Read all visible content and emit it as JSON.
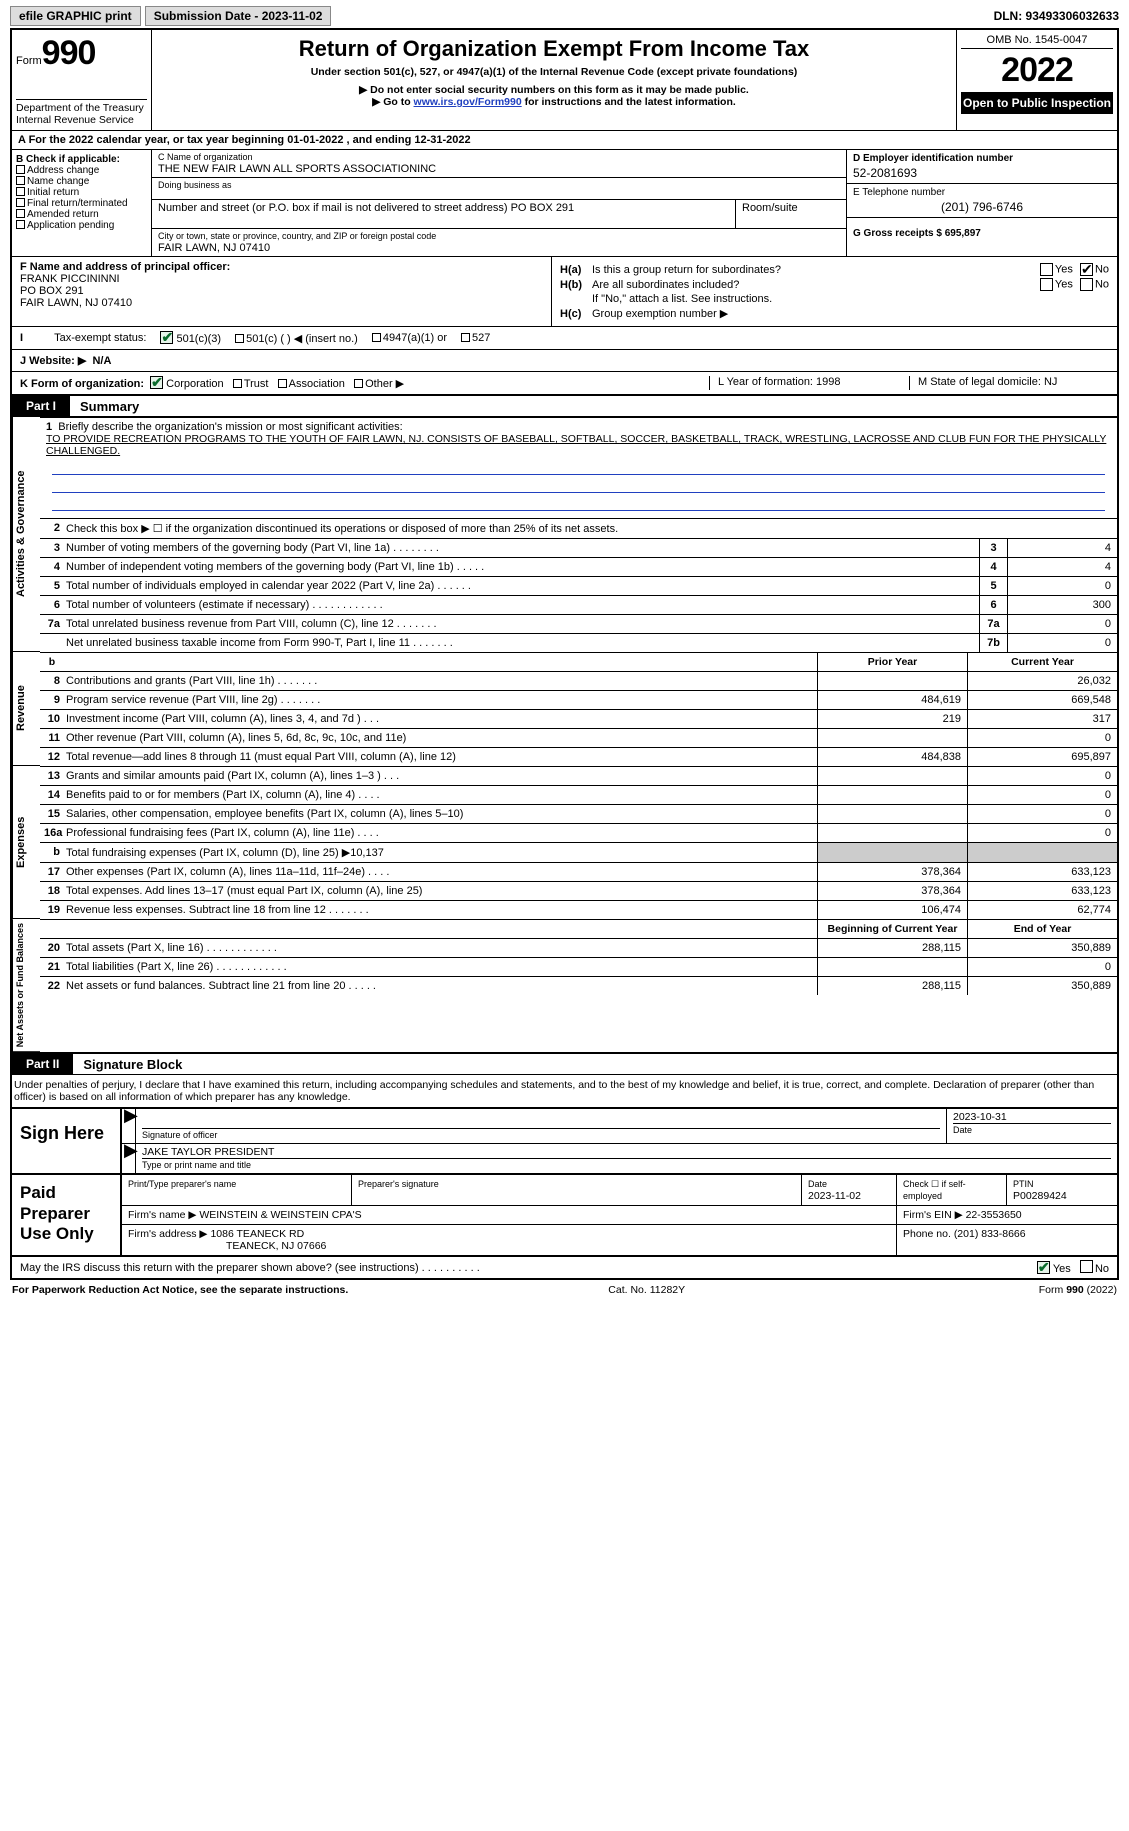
{
  "colors": {
    "link": "#2040c0",
    "check_green": "#0a6b2c",
    "shade": "#cccccc",
    "black": "#000000",
    "white": "#ffffff"
  },
  "topbar": {
    "efile": "efile GRAPHIC print",
    "submission_label": "Submission Date - 2023-11-02",
    "dln_label": "DLN: 93493306032633"
  },
  "header": {
    "form_label": "Form",
    "form_number": "990",
    "dept": "Department of the Treasury\nInternal Revenue Service",
    "title": "Return of Organization Exempt From Income Tax",
    "subtitle": "Under section 501(c), 527, or 4947(a)(1) of the Internal Revenue Code (except private foundations)",
    "note1": "▶ Do not enter social security numbers on this form as it may be made public.",
    "note2_pre": "▶ Go to ",
    "note2_link": "www.irs.gov/Form990",
    "note2_post": " for instructions and the latest information.",
    "omb": "OMB No. 1545-0047",
    "year": "2022",
    "public": "Open to Public Inspection"
  },
  "rowA": "A For the 2022 calendar year, or tax year beginning 01-01-2022   , and ending 12-31-2022",
  "colB": {
    "label": "B Check if applicable:",
    "items": [
      "Address change",
      "Name change",
      "Initial return",
      "Final return/terminated",
      "Amended return",
      "Application pending"
    ]
  },
  "colC": {
    "name_label": "C Name of organization",
    "name": "THE NEW FAIR LAWN ALL SPORTS ASSOCIATIONINC",
    "dba_label": "Doing business as",
    "dba": "",
    "street_label": "Number and street (or P.O. box if mail is not delivered to street address)",
    "room_label": "Room/suite",
    "street": "PO BOX 291",
    "city_label": "City or town, state or province, country, and ZIP or foreign postal code",
    "city": "FAIR LAWN, NJ  07410"
  },
  "colDE": {
    "d_label": "D Employer identification number",
    "d_val": "52-2081693",
    "e_label": "E Telephone number",
    "e_val": "(201) 796-6746",
    "g_label": "G Gross receipts $ 695,897"
  },
  "blockF": {
    "label": "F Name and address of principal officer:",
    "name": "FRANK PICCININNI",
    "street": "PO BOX 291",
    "city": "FAIR LAWN, NJ  07410"
  },
  "blockH": {
    "ha_label": "Is this a group return for subordinates?",
    "ha": "H(a)",
    "hb": "H(b)",
    "hb_label": "Are all subordinates included?",
    "hb_note": "If \"No,\" attach a list. See instructions.",
    "hc": "H(c)",
    "hc_label": "Group exemption number ▶",
    "yes": "Yes",
    "no": "No",
    "ha_no_checked": true
  },
  "rowI": {
    "label": "Tax-exempt status:",
    "o1": "501(c)(3)",
    "o2": "501(c) (   ) ◀ (insert no.)",
    "o3": "4947(a)(1) or",
    "o4": "527",
    "checked": "o1"
  },
  "rowJ": {
    "label": "J   Website: ▶",
    "val": "N/A"
  },
  "rowK": {
    "label": "K Form of organization:",
    "opts": [
      "Corporation",
      "Trust",
      "Association",
      "Other ▶"
    ],
    "checked": 0
  },
  "rowL": "L Year of formation: 1998",
  "rowM": "M State of legal domicile: NJ",
  "part1": {
    "tag": "Part I",
    "title": "Summary"
  },
  "mission": {
    "num": "1",
    "label": "Briefly describe the organization's mission or most significant activities:",
    "text": "TO PROVIDE RECREATION PROGRAMS TO THE YOUTH OF FAIR LAWN, NJ. CONSISTS OF BASEBALL, SOFTBALL, SOCCER, BASKETBALL, TRACK, WRESTLING, LACROSSE AND CLUB FUN FOR THE PHYSICALLY CHALLENGED."
  },
  "sectAG": {
    "vlabel": "Activities & Governance",
    "rows": [
      {
        "n": "2",
        "d": "Check this box ▶ ☐ if the organization discontinued its operations or disposed of more than 25% of its net assets.",
        "box": "",
        "v": ""
      },
      {
        "n": "3",
        "d": "Number of voting members of the governing body (Part VI, line 1a)   .    .    .    .    .    .    .    .",
        "box": "3",
        "v": "4"
      },
      {
        "n": "4",
        "d": "Number of independent voting members of the governing body (Part VI, line 1b)   .    .    .    .    .",
        "box": "4",
        "v": "4"
      },
      {
        "n": "5",
        "d": "Total number of individuals employed in calendar year 2022 (Part V, line 2a)   .    .    .    .    .    .",
        "box": "5",
        "v": "0"
      },
      {
        "n": "6",
        "d": "Total number of volunteers (estimate if necessary)   .    .    .    .    .    .    .    .    .    .    .    .",
        "box": "6",
        "v": "300"
      },
      {
        "n": "7a",
        "d": "Total unrelated business revenue from Part VIII, column (C), line 12   .    .    .    .    .    .    .",
        "box": "7a",
        "v": "0"
      },
      {
        "n": "",
        "d": "Net unrelated business taxable income from Form 990-T, Part I, line 11   .    .    .    .    .    .    .",
        "box": "7b",
        "v": "0"
      }
    ]
  },
  "revHdr": {
    "left": "b",
    "prior": "Prior Year",
    "curr": "Current Year"
  },
  "sectRev": {
    "vlabel": "Revenue",
    "rows": [
      {
        "n": "8",
        "d": "Contributions and grants (Part VIII, line 1h)   .    .    .    .    .    .    .",
        "p": "",
        "c": "26,032"
      },
      {
        "n": "9",
        "d": "Program service revenue (Part VIII, line 2g)   .    .    .    .    .    .    .",
        "p": "484,619",
        "c": "669,548"
      },
      {
        "n": "10",
        "d": "Investment income (Part VIII, column (A), lines 3, 4, and 7d )   .    .    .",
        "p": "219",
        "c": "317"
      },
      {
        "n": "11",
        "d": "Other revenue (Part VIII, column (A), lines 5, 6d, 8c, 9c, 10c, and 11e)",
        "p": "",
        "c": "0"
      },
      {
        "n": "12",
        "d": "Total revenue—add lines 8 through 11 (must equal Part VIII, column (A), line 12)",
        "p": "484,838",
        "c": "695,897"
      }
    ]
  },
  "sectExp": {
    "vlabel": "Expenses",
    "rows": [
      {
        "n": "13",
        "d": "Grants and similar amounts paid (Part IX, column (A), lines 1–3 )   .    .    .",
        "p": "",
        "c": "0"
      },
      {
        "n": "14",
        "d": "Benefits paid to or for members (Part IX, column (A), line 4)   .    .    .    .",
        "p": "",
        "c": "0"
      },
      {
        "n": "15",
        "d": "Salaries, other compensation, employee benefits (Part IX, column (A), lines 5–10)",
        "p": "",
        "c": "0"
      },
      {
        "n": "16a",
        "d": "Professional fundraising fees (Part IX, column (A), line 11e)   .    .    .    .",
        "p": "",
        "c": "0"
      },
      {
        "n": "b",
        "d": "Total fundraising expenses (Part IX, column (D), line 25) ▶10,137",
        "p": "__shade__",
        "c": "__shade__"
      },
      {
        "n": "17",
        "d": "Other expenses (Part IX, column (A), lines 11a–11d, 11f–24e)   .    .    .    .",
        "p": "378,364",
        "c": "633,123"
      },
      {
        "n": "18",
        "d": "Total expenses. Add lines 13–17 (must equal Part IX, column (A), line 25)",
        "p": "378,364",
        "c": "633,123"
      },
      {
        "n": "19",
        "d": "Revenue less expenses. Subtract line 18 from line 12   .    .    .    .    .    .    .",
        "p": "106,474",
        "c": "62,774"
      }
    ]
  },
  "naHdr": {
    "prior": "Beginning of Current Year",
    "curr": "End of Year"
  },
  "sectNA": {
    "vlabel": "Net Assets or Fund Balances",
    "rows": [
      {
        "n": "20",
        "d": "Total assets (Part X, line 16)   .    .    .    .    .    .    .    .    .    .    .    .",
        "p": "288,115",
        "c": "350,889"
      },
      {
        "n": "21",
        "d": "Total liabilities (Part X, line 26)   .    .    .    .    .    .    .    .    .    .    .    .",
        "p": "",
        "c": "0"
      },
      {
        "n": "22",
        "d": "Net assets or fund balances. Subtract line 21 from line 20   .    .    .    .    .",
        "p": "288,115",
        "c": "350,889"
      }
    ]
  },
  "part2": {
    "tag": "Part II",
    "title": "Signature Block"
  },
  "penalty": "Under penalties of perjury, I declare that I have examined this return, including accompanying schedules and statements, and to the best of my knowledge and belief, it is true, correct, and complete. Declaration of preparer (other than officer) is based on all information of which preparer has any knowledge.",
  "sign": {
    "label": "Sign Here",
    "sig_label": "Signature of officer",
    "date": "2023-10-31",
    "date_label": "Date",
    "name": "JAKE TAYLOR  PRESIDENT",
    "name_label": "Type or print name and title"
  },
  "paid": {
    "label": "Paid Preparer Use Only",
    "h_name": "Print/Type preparer's name",
    "h_sig": "Preparer's signature",
    "h_date": "Date",
    "date": "2023-11-02",
    "h_self": "Check ☐ if self-employed",
    "h_ptin": "PTIN",
    "ptin": "P00289424",
    "firm_name_label": "Firm's name      ▶",
    "firm_name": "WEINSTEIN & WEINSTEIN CPA'S",
    "firm_ein_label": "Firm's EIN ▶",
    "firm_ein": "22-3553650",
    "firm_addr_label": "Firm's address ▶",
    "firm_addr1": "1086 TEANECK RD",
    "firm_addr2": "TEANECK, NJ  07666",
    "phone_label": "Phone no.",
    "phone": "(201) 833-8666"
  },
  "mayrow": {
    "text": "May the IRS discuss this return with the preparer shown above? (see instructions)   .    .    .    .    .    .    .    .    .    .",
    "yes": "Yes",
    "no": "No",
    "yes_checked": true
  },
  "footer": {
    "left": "For Paperwork Reduction Act Notice, see the separate instructions.",
    "mid": "Cat. No. 11282Y",
    "right": "Form 990 (2022)"
  }
}
